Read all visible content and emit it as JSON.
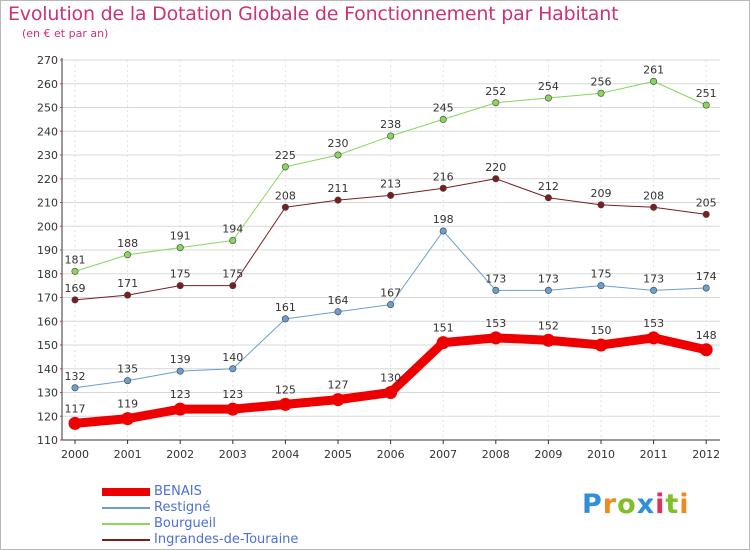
{
  "header": {
    "title": "Evolution de la Dotation Globale de Fonctionnement par Habitant",
    "subtitle": "(en € et par an)"
  },
  "logo": {
    "text": "Proxiti",
    "letters": [
      "P",
      "r",
      "o",
      "x",
      "i",
      "t",
      "i"
    ]
  },
  "chart_data": {
    "type": "line",
    "title": "Evolution de la Dotation Globale de Fonctionnement par Habitant",
    "subtitle": "(en € et par an)",
    "xlabel": "",
    "ylabel": "",
    "categories": [
      "2000",
      "2001",
      "2002",
      "2003",
      "2004",
      "2005",
      "2006",
      "2007",
      "2008",
      "2009",
      "2010",
      "2011",
      "2012"
    ],
    "ylim": [
      110,
      270
    ],
    "yticks": [
      110,
      120,
      130,
      140,
      150,
      160,
      170,
      180,
      190,
      200,
      210,
      220,
      230,
      240,
      250,
      260,
      270
    ],
    "grid": true,
    "legend_position": "bottom-left",
    "series": [
      {
        "name": "Ingrandes-de-Touraine",
        "color": "#7a1f1f",
        "width": 1,
        "values": [
          169,
          171,
          175,
          175,
          208,
          211,
          213,
          216,
          220,
          212,
          209,
          208,
          205
        ]
      },
      {
        "name": "Bourgueil",
        "color": "#88d65a",
        "width": 1,
        "values": [
          181,
          188,
          191,
          194,
          225,
          230,
          238,
          245,
          252,
          254,
          256,
          261,
          251
        ]
      },
      {
        "name": "Restigné",
        "color": "#6a9fd0",
        "width": 1,
        "values": [
          132,
          135,
          139,
          140,
          161,
          164,
          167,
          198,
          173,
          173,
          175,
          173,
          174
        ]
      },
      {
        "name": "BENAIS",
        "color": "#ee0000",
        "width": 9,
        "values": [
          117,
          119,
          123,
          123,
          125,
          127,
          130,
          151,
          153,
          152,
          150,
          153,
          148
        ]
      }
    ],
    "legend": [
      {
        "name": "BENAIS",
        "color": "#ee0000"
      },
      {
        "name": "Restigné",
        "color": "#6a9fd0"
      },
      {
        "name": "Bourgueil",
        "color": "#88d65a"
      },
      {
        "name": "Ingrandes-de-Touraine",
        "color": "#7a1f1f"
      }
    ]
  }
}
